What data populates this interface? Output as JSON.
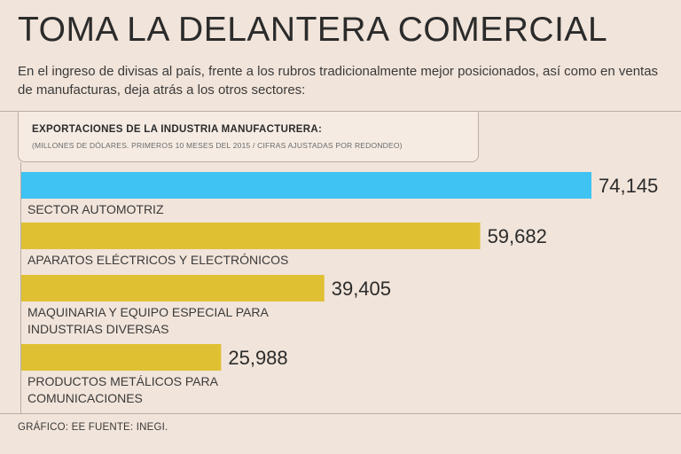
{
  "header": {
    "title": "TOMA LA DELANTERA COMERCIAL",
    "subtitle": "En el ingreso de divisas al país, frente a los rubros tradicionalmente mejor posicionados, así como en ventas de manufacturas, deja atrás a los otros sectores:"
  },
  "chart_data": {
    "type": "bar",
    "orientation": "horizontal",
    "title": "EXPORTACIONES DE LA INDUSTRIA MANUFACTURERA:",
    "subtitle": "(MILLONES DE DÓLARES. PRIMEROS 10 MESES DEL 2015 / CIFRAS AJUSTADAS POR REDONDEO)",
    "categories": [
      [
        "SECTOR AUTOMOTRIZ"
      ],
      [
        "APARATOS ELÉCTRICOS Y ELECTRÓNICOS"
      ],
      [
        "MAQUINARIA Y EQUIPO ESPECIAL PARA",
        "INDUSTRIAS DIVERSAS"
      ],
      [
        "PRODUCTOS METÁLICOS PARA",
        "COMUNICACIONES"
      ]
    ],
    "values": [
      74145,
      59682,
      39405,
      25988
    ],
    "value_labels": [
      "74,145",
      "59,682",
      "39,405",
      "25,988"
    ],
    "colors": [
      "#3ec3f2",
      "#e0c033",
      "#e0c033",
      "#e0c033"
    ],
    "xlim": [
      0,
      74145
    ],
    "grid": false,
    "legend": "none"
  },
  "footer": {
    "source": "GRÁFICO: EE  FUENTE: INEGI."
  }
}
